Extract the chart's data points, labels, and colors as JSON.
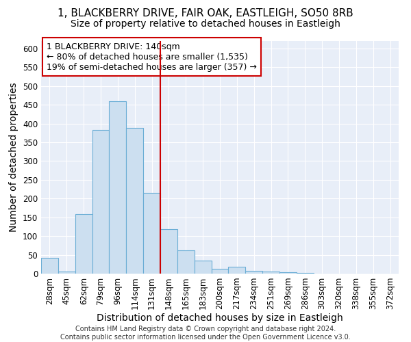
{
  "title_line1": "1, BLACKBERRY DRIVE, FAIR OAK, EASTLEIGH, SO50 8RB",
  "title_line2": "Size of property relative to detached houses in Eastleigh",
  "xlabel": "Distribution of detached houses by size in Eastleigh",
  "ylabel": "Number of detached properties",
  "bar_color": "#ccdff0",
  "bar_edge_color": "#6aadd5",
  "categories": [
    "28sqm",
    "45sqm",
    "62sqm",
    "79sqm",
    "96sqm",
    "114sqm",
    "131sqm",
    "148sqm",
    "165sqm",
    "183sqm",
    "200sqm",
    "217sqm",
    "234sqm",
    "251sqm",
    "269sqm",
    "286sqm",
    "303sqm",
    "320sqm",
    "338sqm",
    "355sqm",
    "372sqm"
  ],
  "values": [
    42,
    5,
    158,
    383,
    460,
    388,
    215,
    118,
    62,
    35,
    13,
    18,
    8,
    5,
    4,
    1,
    0,
    0,
    0,
    0,
    0
  ],
  "ylim": [
    0,
    620
  ],
  "yticks": [
    0,
    50,
    100,
    150,
    200,
    250,
    300,
    350,
    400,
    450,
    500,
    550,
    600
  ],
  "vline_color": "#cc0000",
  "vline_x": 6.5,
  "annotation_text": "1 BLACKBERRY DRIVE: 140sqm\n← 80% of detached houses are smaller (1,535)\n19% of semi-detached houses are larger (357) →",
  "footer": "Contains HM Land Registry data © Crown copyright and database right 2024.\nContains public sector information licensed under the Open Government Licence v3.0.",
  "background_color": "#e8eef8",
  "grid_color": "#ffffff",
  "fig_background": "#ffffff",
  "title_fontsize": 11,
  "subtitle_fontsize": 10,
  "axis_label_fontsize": 10,
  "tick_fontsize": 8.5,
  "annotation_fontsize": 9,
  "footer_fontsize": 7
}
